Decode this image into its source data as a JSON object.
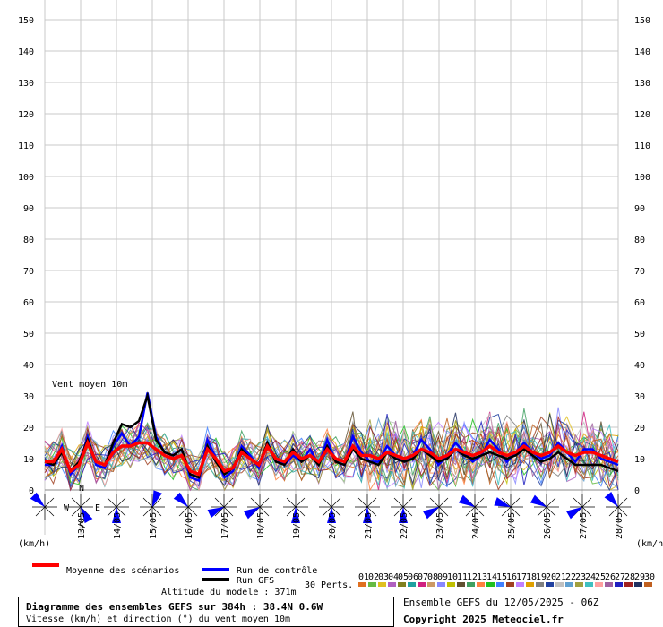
{
  "chart_data": {
    "type": "line",
    "title": "Diagramme des ensembles GEFS sur 384h : 38.4N 0.6W",
    "subtitle": "Vitesse (km/h) et direction (°) du vent moyen 10m",
    "inner_label": "Vent moyen 10m",
    "unit_label": "(km/h)",
    "ylim": [
      0,
      150
    ],
    "y_ticks": [
      0,
      10,
      20,
      30,
      40,
      50,
      60,
      70,
      80,
      90,
      100,
      110,
      120,
      130,
      140,
      150
    ],
    "x_ticks": [
      "13/05",
      "14/05",
      "15/05",
      "16/05",
      "17/05",
      "18/05",
      "19/05",
      "20/05",
      "21/05",
      "22/05",
      "23/05",
      "24/05",
      "25/05",
      "26/05",
      "27/05",
      "28/05"
    ],
    "compass": {
      "N": "N",
      "S": "S",
      "E": "E",
      "W": "W"
    },
    "series": [
      {
        "name": "Moyenne des scénarios",
        "color": "#ff0000",
        "values": [
          9,
          9,
          13,
          6,
          8,
          15,
          9,
          8,
          12,
          14,
          14,
          15,
          15,
          13,
          11,
          10,
          11,
          6,
          5,
          13,
          10,
          6,
          7,
          12,
          10,
          8,
          14,
          10,
          9,
          12,
          10,
          11,
          9,
          13,
          10,
          9,
          14,
          11,
          11,
          10,
          12,
          11,
          10,
          11,
          13,
          12,
          10,
          11,
          13,
          12,
          11,
          12,
          14,
          12,
          11,
          12,
          14,
          12,
          11,
          12,
          14,
          12,
          11,
          12,
          12,
          11,
          10,
          9
        ]
      },
      {
        "name": "Run de contrôle",
        "color": "#0000ff",
        "values": [
          8,
          8,
          14,
          5,
          8,
          17,
          8,
          7,
          14,
          18,
          14,
          17,
          31,
          17,
          12,
          11,
          13,
          4,
          3,
          16,
          10,
          4,
          6,
          14,
          11,
          7,
          15,
          10,
          8,
          11,
          9,
          13,
          8,
          16,
          9,
          8,
          17,
          12,
          9,
          9,
          14,
          11,
          9,
          11,
          16,
          13,
          8,
          11,
          15,
          12,
          9,
          11,
          16,
          13,
          9,
          12,
          15,
          12,
          10,
          11,
          15,
          12,
          9,
          13,
          13,
          10,
          9,
          8
        ]
      },
      {
        "name": "Run GFS",
        "color": "#000000",
        "values": [
          9,
          8,
          12,
          6,
          9,
          16,
          9,
          8,
          15,
          21,
          20,
          22,
          30,
          16,
          12,
          11,
          13,
          5,
          4,
          14,
          9,
          5,
          7,
          13,
          10,
          8,
          15,
          9,
          8,
          13,
          9,
          11,
          8,
          14,
          9,
          8,
          13,
          10,
          9,
          8,
          12,
          10,
          9,
          10,
          13,
          11,
          9,
          10,
          13,
          11,
          10,
          11,
          12,
          11,
          10,
          11,
          13,
          11,
          9,
          10,
          12,
          10,
          8,
          8,
          8,
          8,
          7,
          6
        ]
      }
    ],
    "perturbations_label": "30 Perts.",
    "perturbation_ids": [
      "01",
      "02",
      "03",
      "04",
      "05",
      "06",
      "07",
      "08",
      "09",
      "10",
      "11",
      "12",
      "13",
      "14",
      "15",
      "16",
      "17",
      "18",
      "19",
      "20",
      "21",
      "22",
      "23",
      "24",
      "25",
      "26",
      "27",
      "28",
      "29",
      "30"
    ],
    "perturbation_colors": [
      "#e07020",
      "#66bb44",
      "#e0c020",
      "#b060c0",
      "#808020",
      "#20a0a0",
      "#d02080",
      "#cc9966",
      "#8888ff",
      "#c0c000",
      "#605030",
      "#40a060",
      "#ff8040",
      "#20c020",
      "#4080ff",
      "#a04020",
      "#c080ff",
      "#e0a000",
      "#808080",
      "#2040a0",
      "#c0c0c0",
      "#60a0d0",
      "#a0a040",
      "#40c0c0",
      "#ffa0a0",
      "#a060a0",
      "#2020c0",
      "#a02020",
      "#203060",
      "#c06020"
    ],
    "wind_dir_ticks": [
      0,
      1,
      2,
      3,
      4,
      5,
      6,
      7,
      8,
      9,
      10,
      11,
      12,
      13,
      14,
      15,
      16
    ],
    "wind_dir_deg": [
      315,
      150,
      180,
      20,
      315,
      245,
      240,
      180,
      180,
      180,
      180,
      240,
      300,
      290,
      300,
      240,
      320
    ]
  },
  "legend": {
    "mean_label": "Moyenne des scénarios",
    "control_label": "Run de contrôle",
    "gfs_label": "Run GFS",
    "perts_label": "30 Perts.",
    "altitude": "Altitude du modele : 371m"
  },
  "footer": {
    "title": "Diagramme des ensembles GEFS sur 384h : 38.4N 0.6W",
    "subtitle": "Vitesse (km/h) et direction (°) du vent moyen 10m",
    "run_info": "Ensemble GEFS du 12/05/2025 - 06Z",
    "copyright": "Copyright 2025 Meteociel.fr"
  }
}
